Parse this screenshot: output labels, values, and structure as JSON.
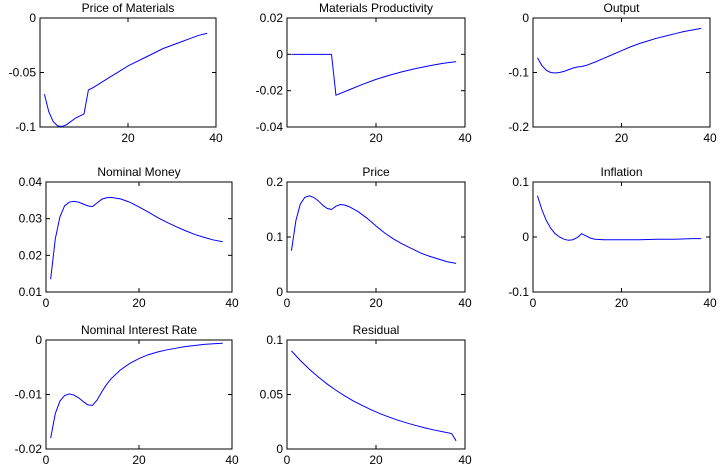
{
  "chart_data": [
    {
      "type": "line",
      "title": "Price of Materials",
      "xlim": [
        0,
        40
      ],
      "ylim": [
        -0.1,
        0
      ],
      "xticks": [
        0,
        20,
        40
      ],
      "xtick_labels": [
        "",
        "20",
        "40"
      ],
      "yticks": [
        0,
        -0.05,
        -0.1
      ],
      "ytick_labels": [
        "0",
        "-0.05",
        "-0.1"
      ],
      "grid": false,
      "series": [
        {
          "color": "#0000ff",
          "x": [
            1,
            2,
            3,
            4,
            5,
            6,
            7,
            8,
            9,
            10,
            11,
            12,
            14,
            16,
            18,
            20,
            22,
            24,
            26,
            28,
            30,
            32,
            34,
            36,
            38
          ],
          "y": [
            -0.07,
            -0.086,
            -0.095,
            -0.099,
            -0.0995,
            -0.098,
            -0.095,
            -0.092,
            -0.09,
            -0.088,
            -0.066,
            -0.064,
            -0.059,
            -0.054,
            -0.049,
            -0.044,
            -0.04,
            -0.036,
            -0.032,
            -0.028,
            -0.025,
            -0.022,
            -0.019,
            -0.016,
            -0.014
          ]
        }
      ]
    },
    {
      "type": "line",
      "title": "Materials Productivity",
      "xlim": [
        0,
        40
      ],
      "ylim": [
        -0.04,
        0.02
      ],
      "xticks": [
        0,
        20,
        40
      ],
      "xtick_labels": [
        "",
        "20",
        "40"
      ],
      "yticks": [
        0.02,
        0,
        -0.02,
        -0.04
      ],
      "ytick_labels": [
        "0.02",
        "0",
        "-0.02",
        "-0.04"
      ],
      "grid": false,
      "series": [
        {
          "color": "#0000ff",
          "x": [
            1,
            5,
            10,
            11,
            14,
            17,
            20,
            23,
            26,
            29,
            32,
            35,
            38
          ],
          "y": [
            0,
            0,
            0,
            -0.0225,
            -0.0195,
            -0.0165,
            -0.0138,
            -0.0115,
            -0.0095,
            -0.0078,
            -0.0063,
            -0.005,
            -0.004
          ]
        }
      ]
    },
    {
      "type": "line",
      "title": "Output",
      "xlim": [
        0,
        40
      ],
      "ylim": [
        -0.2,
        0
      ],
      "xticks": [
        0,
        20,
        40
      ],
      "xtick_labels": [
        "",
        "20",
        "40"
      ],
      "yticks": [
        0,
        -0.1,
        -0.2
      ],
      "ytick_labels": [
        "0",
        "-0.1",
        "-0.2"
      ],
      "grid": false,
      "series": [
        {
          "color": "#0000ff",
          "x": [
            1,
            2,
            3,
            4,
            5,
            6,
            7,
            8,
            9,
            10,
            11,
            12,
            14,
            16,
            18,
            20,
            22,
            24,
            26,
            28,
            30,
            32,
            34,
            36,
            38
          ],
          "y": [
            -0.073,
            -0.087,
            -0.096,
            -0.1,
            -0.101,
            -0.1,
            -0.098,
            -0.095,
            -0.092,
            -0.09,
            -0.089,
            -0.087,
            -0.081,
            -0.074,
            -0.067,
            -0.06,
            -0.053,
            -0.047,
            -0.042,
            -0.037,
            -0.033,
            -0.029,
            -0.025,
            -0.022,
            -0.019
          ]
        }
      ]
    },
    {
      "type": "line",
      "title": "Nominal Money",
      "xlim": [
        0,
        40
      ],
      "ylim": [
        0.01,
        0.04
      ],
      "xticks": [
        0,
        20,
        40
      ],
      "xtick_labels": [
        "0",
        "20",
        "40"
      ],
      "yticks": [
        0.04,
        0.03,
        0.02,
        0.01
      ],
      "ytick_labels": [
        "0.04",
        "0.03",
        "0.02",
        "0.01"
      ],
      "grid": false,
      "series": [
        {
          "color": "#0000ff",
          "x": [
            1,
            2,
            3,
            4,
            5,
            6,
            7,
            8,
            9,
            10,
            11,
            12,
            13,
            14,
            16,
            18,
            20,
            22,
            24,
            26,
            28,
            30,
            32,
            34,
            36,
            38
          ],
          "y": [
            0.0135,
            0.0245,
            0.0305,
            0.0335,
            0.0345,
            0.0347,
            0.0345,
            0.034,
            0.0335,
            0.0333,
            0.0343,
            0.0353,
            0.0357,
            0.0358,
            0.0354,
            0.0345,
            0.0332,
            0.0318,
            0.0303,
            0.029,
            0.0278,
            0.0267,
            0.0257,
            0.0249,
            0.0242,
            0.0237
          ]
        }
      ]
    },
    {
      "type": "line",
      "title": "Price",
      "xlim": [
        0,
        40
      ],
      "ylim": [
        0,
        0.2
      ],
      "xticks": [
        0,
        20,
        40
      ],
      "xtick_labels": [
        "0",
        "20",
        "40"
      ],
      "yticks": [
        0.2,
        0.1,
        0
      ],
      "ytick_labels": [
        "0.2",
        "0.1",
        "0"
      ],
      "grid": false,
      "series": [
        {
          "color": "#0000ff",
          "x": [
            1,
            2,
            3,
            4,
            5,
            6,
            7,
            8,
            9,
            10,
            11,
            12,
            13,
            14,
            16,
            18,
            20,
            22,
            24,
            26,
            28,
            30,
            32,
            34,
            36,
            38
          ],
          "y": [
            0.075,
            0.13,
            0.16,
            0.172,
            0.175,
            0.172,
            0.166,
            0.158,
            0.152,
            0.15,
            0.156,
            0.159,
            0.158,
            0.155,
            0.146,
            0.134,
            0.12,
            0.107,
            0.096,
            0.087,
            0.079,
            0.071,
            0.065,
            0.06,
            0.055,
            0.052
          ]
        }
      ]
    },
    {
      "type": "line",
      "title": "Inflation",
      "xlim": [
        0,
        40
      ],
      "ylim": [
        -0.1,
        0.1
      ],
      "xticks": [
        0,
        20,
        40
      ],
      "xtick_labels": [
        "0",
        "20",
        "40"
      ],
      "yticks": [
        0.1,
        0,
        -0.1
      ],
      "ytick_labels": [
        "0.1",
        "0",
        "-0.1"
      ],
      "grid": false,
      "series": [
        {
          "color": "#0000ff",
          "x": [
            1,
            2,
            3,
            4,
            5,
            6,
            7,
            8,
            9,
            10,
            11,
            12,
            13,
            14,
            16,
            18,
            20,
            24,
            28,
            32,
            36,
            38
          ],
          "y": [
            0.075,
            0.05,
            0.03,
            0.016,
            0.006,
            0.0,
            -0.004,
            -0.006,
            -0.005,
            -0.001,
            0.006,
            0.002,
            -0.002,
            -0.004,
            -0.005,
            -0.005,
            -0.005,
            -0.005,
            -0.004,
            -0.004,
            -0.003,
            -0.003
          ]
        }
      ]
    },
    {
      "type": "line",
      "title": "Nominal Interest Rate",
      "xlim": [
        0,
        40
      ],
      "ylim": [
        -0.02,
        0
      ],
      "xticks": [
        0,
        20,
        40
      ],
      "xtick_labels": [
        "0",
        "20",
        "40"
      ],
      "yticks": [
        0,
        -0.01,
        -0.02
      ],
      "ytick_labels": [
        "0",
        "-0.01",
        "-0.02"
      ],
      "grid": false,
      "series": [
        {
          "color": "#0000ff",
          "x": [
            1,
            2,
            3,
            4,
            5,
            6,
            7,
            8,
            9,
            10,
            11,
            12,
            13,
            14,
            16,
            18,
            20,
            22,
            24,
            26,
            28,
            30,
            32,
            34,
            36,
            38
          ],
          "y": [
            -0.018,
            -0.0135,
            -0.0112,
            -0.0102,
            -0.0099,
            -0.0101,
            -0.0106,
            -0.0113,
            -0.0119,
            -0.012,
            -0.011,
            -0.0095,
            -0.0082,
            -0.0071,
            -0.0055,
            -0.0043,
            -0.0034,
            -0.0027,
            -0.0022,
            -0.0018,
            -0.0015,
            -0.0012,
            -0.001,
            -0.0008,
            -0.0007,
            -0.0006
          ]
        }
      ]
    },
    {
      "type": "line",
      "title": "Residual",
      "xlim": [
        0,
        40
      ],
      "ylim": [
        0,
        0.1
      ],
      "xticks": [
        0,
        20,
        40
      ],
      "xtick_labels": [
        "0",
        "20",
        "40"
      ],
      "yticks": [
        0.1,
        0.05,
        0
      ],
      "ytick_labels": [
        "0.1",
        "0.05",
        "0"
      ],
      "grid": false,
      "series": [
        {
          "color": "#0000ff",
          "x": [
            1,
            3,
            5,
            7,
            9,
            11,
            13,
            15,
            17,
            19,
            21,
            23,
            25,
            27,
            29,
            31,
            33,
            35,
            37,
            38
          ],
          "y": [
            0.09,
            0.0812,
            0.0733,
            0.0662,
            0.0597,
            0.0539,
            0.0487,
            0.0439,
            0.0397,
            0.0358,
            0.0323,
            0.0292,
            0.0263,
            0.0238,
            0.0215,
            0.0194,
            0.0175,
            0.0158,
            0.0142,
            0.0075
          ]
        }
      ]
    }
  ]
}
